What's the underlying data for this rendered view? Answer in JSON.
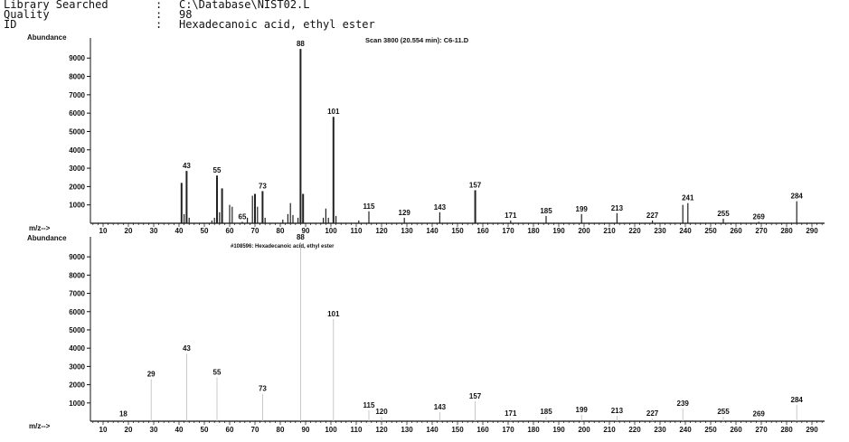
{
  "header": {
    "rows": [
      {
        "key": "Library Searched",
        "sep": ":",
        "value": "C:\\Database\\NIST02.L"
      },
      {
        "key": "Quality",
        "sep": ":",
        "value": "98"
      },
      {
        "key": "ID",
        "sep": ":",
        "value": "Hexadecanoic acid, ethyl ester"
      }
    ]
  },
  "chart_data": [
    {
      "type": "bar",
      "title": "Scan 3800 (20.554 min): C6-11.D",
      "ylabel": "Abundance",
      "xlabel": "m/z-->",
      "xlim": [
        5,
        295
      ],
      "ylim": [
        0,
        9800
      ],
      "yticks": [
        1000,
        2000,
        3000,
        4000,
        5000,
        6000,
        7000,
        8000,
        9000
      ],
      "xticks": [
        10,
        20,
        30,
        40,
        50,
        60,
        70,
        80,
        90,
        100,
        110,
        120,
        130,
        140,
        150,
        160,
        170,
        180,
        190,
        200,
        210,
        220,
        230,
        240,
        250,
        260,
        270,
        280,
        290
      ],
      "peaks": [
        {
          "x": 41,
          "y": 2200
        },
        {
          "x": 42,
          "y": 500
        },
        {
          "x": 43,
          "y": 2850,
          "label": "43"
        },
        {
          "x": 44,
          "y": 300
        },
        {
          "x": 53,
          "y": 150
        },
        {
          "x": 54,
          "y": 300
        },
        {
          "x": 55,
          "y": 2600,
          "label": "55"
        },
        {
          "x": 56,
          "y": 600
        },
        {
          "x": 57,
          "y": 1900
        },
        {
          "x": 60,
          "y": 1000
        },
        {
          "x": 61,
          "y": 900
        },
        {
          "x": 65,
          "y": 80,
          "label": "65"
        },
        {
          "x": 67,
          "y": 300
        },
        {
          "x": 69,
          "y": 1500
        },
        {
          "x": 70,
          "y": 1600
        },
        {
          "x": 71,
          "y": 900
        },
        {
          "x": 73,
          "y": 1750,
          "label": "73"
        },
        {
          "x": 74,
          "y": 300
        },
        {
          "x": 81,
          "y": 200
        },
        {
          "x": 83,
          "y": 500
        },
        {
          "x": 84,
          "y": 1100
        },
        {
          "x": 85,
          "y": 450
        },
        {
          "x": 87,
          "y": 300
        },
        {
          "x": 88,
          "y": 9500,
          "label": "88"
        },
        {
          "x": 89,
          "y": 1600
        },
        {
          "x": 97,
          "y": 300
        },
        {
          "x": 98,
          "y": 800
        },
        {
          "x": 99,
          "y": 300
        },
        {
          "x": 101,
          "y": 5800,
          "label": "101"
        },
        {
          "x": 102,
          "y": 400
        },
        {
          "x": 111,
          "y": 150
        },
        {
          "x": 115,
          "y": 650,
          "label": "115"
        },
        {
          "x": 129,
          "y": 300,
          "label": "129"
        },
        {
          "x": 143,
          "y": 600,
          "label": "143"
        },
        {
          "x": 157,
          "y": 1800,
          "label": "157"
        },
        {
          "x": 171,
          "y": 150,
          "label": "171"
        },
        {
          "x": 185,
          "y": 400,
          "label": "185"
        },
        {
          "x": 199,
          "y": 500,
          "label": "199"
        },
        {
          "x": 213,
          "y": 550,
          "label": "213"
        },
        {
          "x": 227,
          "y": 150,
          "label": "227"
        },
        {
          "x": 239,
          "y": 1000
        },
        {
          "x": 241,
          "y": 1100,
          "label": "241"
        },
        {
          "x": 255,
          "y": 250,
          "label": "255"
        },
        {
          "x": 269,
          "y": 80,
          "label": "269"
        },
        {
          "x": 284,
          "y": 1200,
          "label": "284"
        }
      ]
    },
    {
      "type": "bar",
      "title": "#108596: Hexadecanoic acid, ethyl ester",
      "ylabel": "Abundance",
      "xlabel": "m/z-->",
      "xlim": [
        5,
        295
      ],
      "ylim": [
        0,
        9800
      ],
      "yticks": [
        1000,
        2000,
        3000,
        4000,
        5000,
        6000,
        7000,
        8000,
        9000
      ],
      "xticks": [
        10,
        20,
        30,
        40,
        50,
        60,
        70,
        80,
        90,
        100,
        110,
        120,
        130,
        140,
        150,
        160,
        170,
        180,
        190,
        200,
        210,
        220,
        230,
        240,
        250,
        260,
        270,
        280,
        290
      ],
      "peaks": [
        {
          "x": 18,
          "y": 120,
          "label": "18"
        },
        {
          "x": 29,
          "y": 2300,
          "label": "29"
        },
        {
          "x": 43,
          "y": 3700,
          "label": "43"
        },
        {
          "x": 55,
          "y": 2400,
          "label": "55"
        },
        {
          "x": 73,
          "y": 1500,
          "label": "73"
        },
        {
          "x": 88,
          "y": 9800,
          "label": "88"
        },
        {
          "x": 101,
          "y": 5600,
          "label": "101"
        },
        {
          "x": 115,
          "y": 600,
          "label": "115"
        },
        {
          "x": 120,
          "y": 250,
          "label": "120"
        },
        {
          "x": 143,
          "y": 500,
          "label": "143"
        },
        {
          "x": 157,
          "y": 1100,
          "label": "157"
        },
        {
          "x": 171,
          "y": 150,
          "label": "171"
        },
        {
          "x": 185,
          "y": 250,
          "label": "185"
        },
        {
          "x": 199,
          "y": 350,
          "label": "199"
        },
        {
          "x": 213,
          "y": 300,
          "label": "213"
        },
        {
          "x": 227,
          "y": 150,
          "label": "227"
        },
        {
          "x": 239,
          "y": 700,
          "label": "239"
        },
        {
          "x": 255,
          "y": 250,
          "label": "255"
        },
        {
          "x": 269,
          "y": 120,
          "label": "269"
        },
        {
          "x": 284,
          "y": 900,
          "label": "284"
        }
      ]
    }
  ]
}
